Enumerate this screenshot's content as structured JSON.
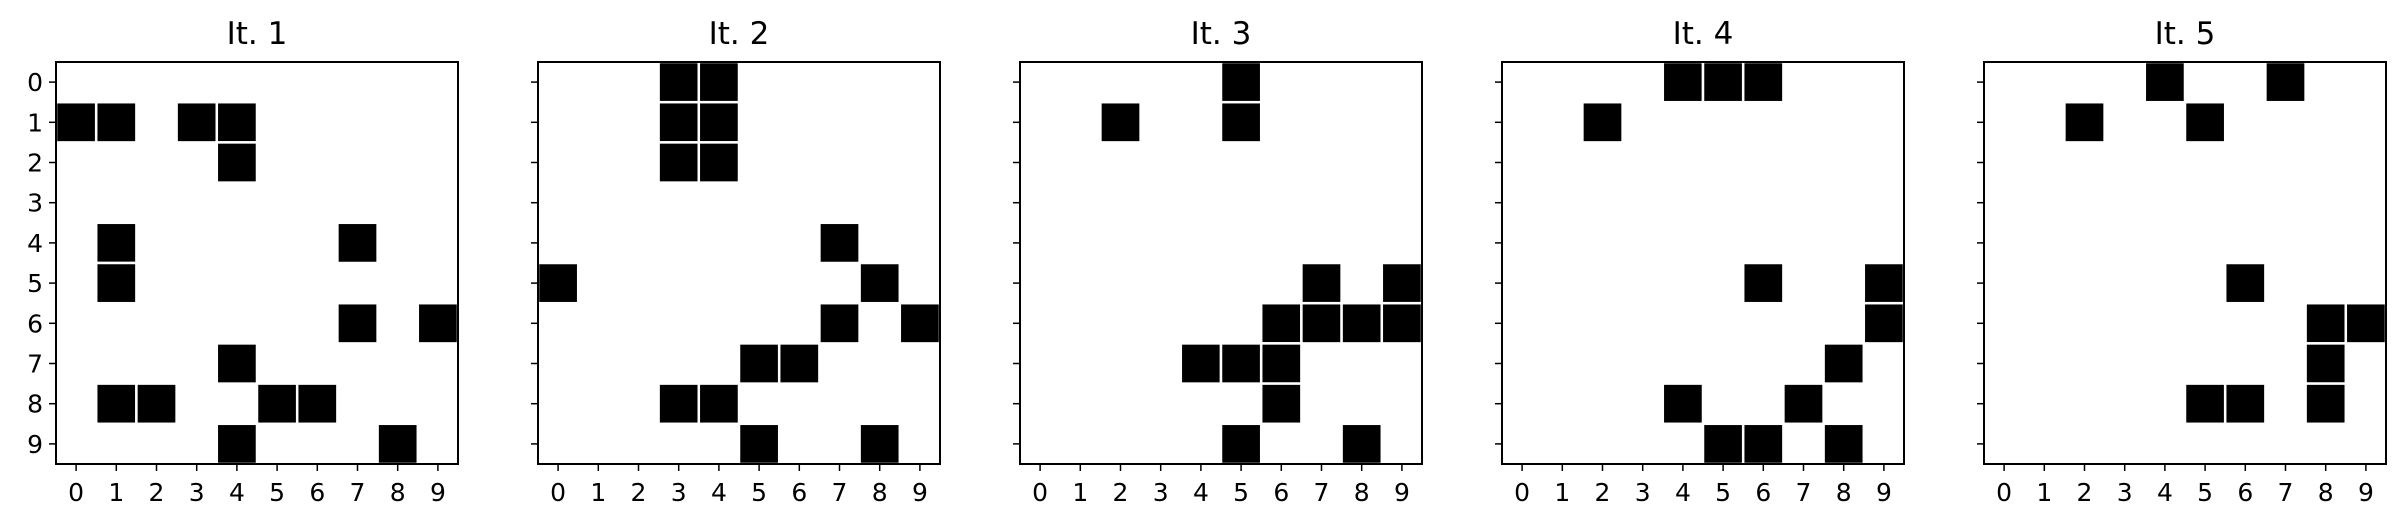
{
  "chart_data": {
    "type": "heatmap",
    "grid_size": 10,
    "colors": {
      "on": "#000000",
      "off": "#ffffff",
      "cell_border": "#ffffff"
    },
    "x_ticks": [
      "0",
      "1",
      "2",
      "3",
      "4",
      "5",
      "6",
      "7",
      "8",
      "9"
    ],
    "y_ticks": [
      "0",
      "1",
      "2",
      "3",
      "4",
      "5",
      "6",
      "7",
      "8",
      "9"
    ],
    "y_ticks_shown_on_first_panel_only": true,
    "panels": [
      {
        "title": "It. 1",
        "filled_cells": [
          [
            1,
            0
          ],
          [
            1,
            1
          ],
          [
            1,
            3
          ],
          [
            1,
            4
          ],
          [
            2,
            4
          ],
          [
            4,
            1
          ],
          [
            4,
            7
          ],
          [
            5,
            1
          ],
          [
            6,
            7
          ],
          [
            6,
            9
          ],
          [
            7,
            4
          ],
          [
            8,
            1
          ],
          [
            8,
            2
          ],
          [
            8,
            5
          ],
          [
            8,
            6
          ],
          [
            9,
            4
          ],
          [
            9,
            8
          ]
        ]
      },
      {
        "title": "It. 2",
        "filled_cells": [
          [
            0,
            3
          ],
          [
            0,
            4
          ],
          [
            1,
            3
          ],
          [
            1,
            4
          ],
          [
            2,
            3
          ],
          [
            2,
            4
          ],
          [
            4,
            7
          ],
          [
            5,
            0
          ],
          [
            5,
            8
          ],
          [
            6,
            7
          ],
          [
            6,
            9
          ],
          [
            7,
            5
          ],
          [
            7,
            6
          ],
          [
            8,
            3
          ],
          [
            8,
            4
          ],
          [
            9,
            5
          ],
          [
            9,
            8
          ]
        ]
      },
      {
        "title": "It. 3",
        "filled_cells": [
          [
            0,
            5
          ],
          [
            1,
            2
          ],
          [
            1,
            5
          ],
          [
            5,
            7
          ],
          [
            5,
            9
          ],
          [
            6,
            6
          ],
          [
            6,
            7
          ],
          [
            6,
            8
          ],
          [
            6,
            9
          ],
          [
            7,
            4
          ],
          [
            7,
            5
          ],
          [
            7,
            6
          ],
          [
            8,
            6
          ],
          [
            9,
            5
          ],
          [
            9,
            8
          ]
        ]
      },
      {
        "title": "It. 4",
        "filled_cells": [
          [
            0,
            4
          ],
          [
            0,
            5
          ],
          [
            0,
            6
          ],
          [
            1,
            2
          ],
          [
            5,
            6
          ],
          [
            5,
            9
          ],
          [
            6,
            9
          ],
          [
            7,
            8
          ],
          [
            8,
            4
          ],
          [
            8,
            7
          ],
          [
            9,
            5
          ],
          [
            9,
            6
          ],
          [
            9,
            8
          ]
        ]
      },
      {
        "title": "It. 5",
        "filled_cells": [
          [
            0,
            4
          ],
          [
            0,
            7
          ],
          [
            1,
            2
          ],
          [
            1,
            5
          ],
          [
            5,
            6
          ],
          [
            6,
            8
          ],
          [
            6,
            9
          ],
          [
            7,
            8
          ],
          [
            8,
            5
          ],
          [
            8,
            6
          ],
          [
            8,
            8
          ]
        ]
      }
    ]
  }
}
